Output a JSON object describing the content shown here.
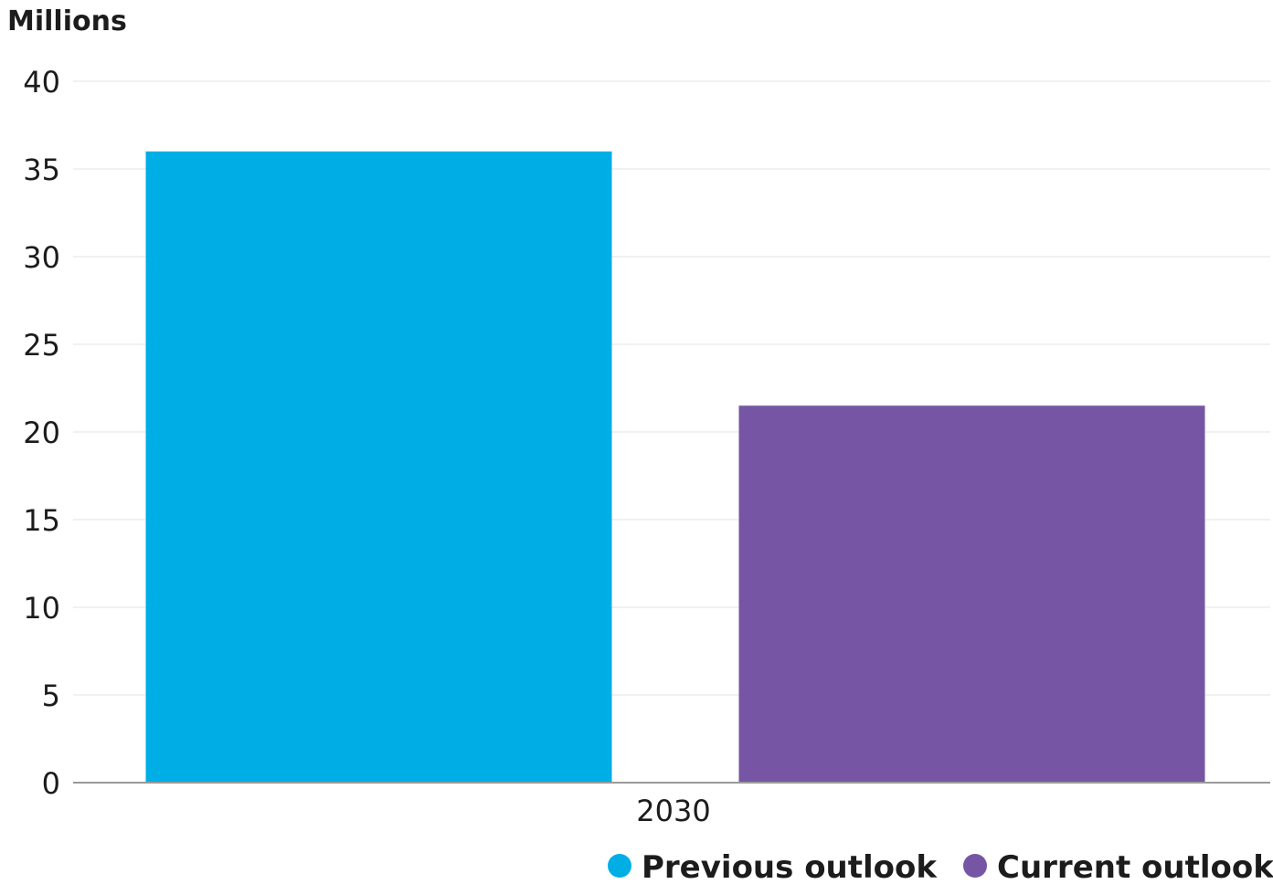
{
  "chart_data": {
    "type": "bar",
    "ylabel": "Millions",
    "categories": [
      "2030"
    ],
    "ylim": [
      0,
      40
    ],
    "yticks": [
      0,
      5,
      10,
      15,
      20,
      25,
      30,
      35,
      40
    ],
    "grid": true,
    "legend_position": "bottom-right",
    "series": [
      {
        "name": "Previous outlook",
        "values": [
          36
        ],
        "color": "#00aee6"
      },
      {
        "name": "Current outlook",
        "values": [
          21.5
        ],
        "color": "#7656a4"
      }
    ]
  }
}
